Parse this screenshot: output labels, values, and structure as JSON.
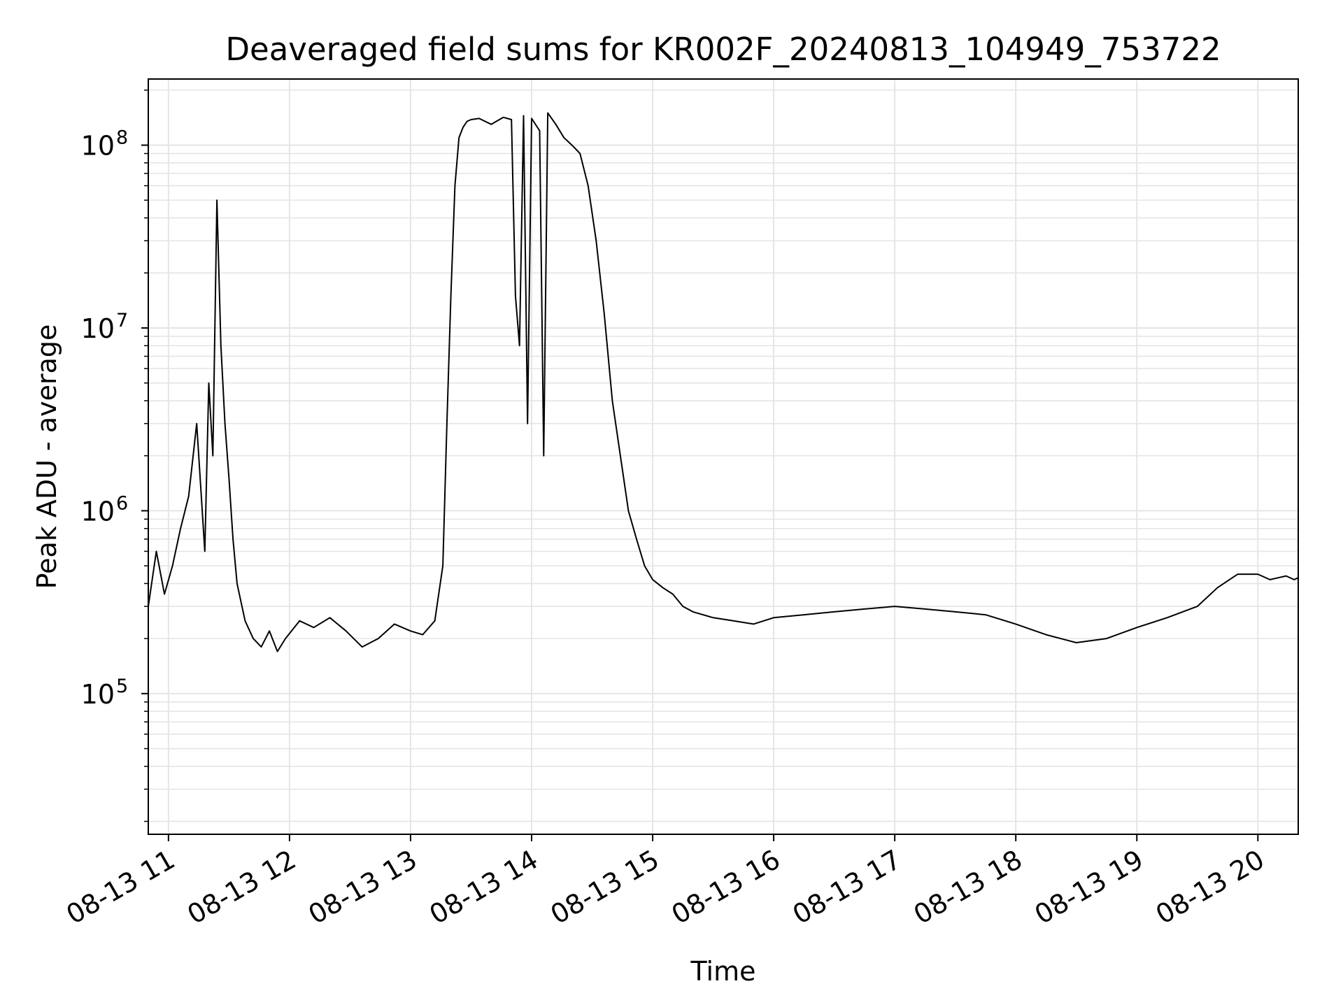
{
  "chart_data": {
    "type": "line",
    "title": "Deaveraged field sums for KR002F_20240813_104949_753722",
    "xlabel": "Time",
    "ylabel": "Peak ADU - average",
    "xlim": [
      "2024-08-13 10:50",
      "2024-08-13 20:20"
    ],
    "ylim": [
      17000,
      230000000
    ],
    "yscale": "log",
    "grid": true,
    "grid_which": "both",
    "line_color": "#000000",
    "grid_color": "#e5e5e5",
    "xticks": [
      {
        "t": "2024-08-13 11:00",
        "label": "08-13 11"
      },
      {
        "t": "2024-08-13 12:00",
        "label": "08-13 12"
      },
      {
        "t": "2024-08-13 13:00",
        "label": "08-13 13"
      },
      {
        "t": "2024-08-13 14:00",
        "label": "08-13 14"
      },
      {
        "t": "2024-08-13 15:00",
        "label": "08-13 15"
      },
      {
        "t": "2024-08-13 16:00",
        "label": "08-13 16"
      },
      {
        "t": "2024-08-13 17:00",
        "label": "08-13 17"
      },
      {
        "t": "2024-08-13 18:00",
        "label": "08-13 18"
      },
      {
        "t": "2024-08-13 19:00",
        "label": "08-13 19"
      },
      {
        "t": "2024-08-13 20:00",
        "label": "08-13 20"
      }
    ],
    "yticks": [
      {
        "value": 100000,
        "base": "10",
        "exp": "5"
      },
      {
        "value": 1000000,
        "base": "10",
        "exp": "6"
      },
      {
        "value": 10000000,
        "base": "10",
        "exp": "7"
      },
      {
        "value": 100000000,
        "base": "10",
        "exp": "8"
      }
    ],
    "series": [
      {
        "x": [
          "2024-08-13 10:50",
          "2024-08-13 10:54",
          "2024-08-13 10:58",
          "2024-08-13 11:02",
          "2024-08-13 11:06",
          "2024-08-13 11:10",
          "2024-08-13 11:14",
          "2024-08-13 11:18",
          "2024-08-13 11:20",
          "2024-08-13 11:22",
          "2024-08-13 11:24",
          "2024-08-13 11:26",
          "2024-08-13 11:28",
          "2024-08-13 11:30",
          "2024-08-13 11:32",
          "2024-08-13 11:34",
          "2024-08-13 11:38",
          "2024-08-13 11:42",
          "2024-08-13 11:46",
          "2024-08-13 11:50",
          "2024-08-13 11:54",
          "2024-08-13 11:58",
          "2024-08-13 12:05",
          "2024-08-13 12:12",
          "2024-08-13 12:20",
          "2024-08-13 12:28",
          "2024-08-13 12:36",
          "2024-08-13 12:44",
          "2024-08-13 12:52",
          "2024-08-13 13:00",
          "2024-08-13 13:06",
          "2024-08-13 13:12",
          "2024-08-13 13:16",
          "2024-08-13 13:18",
          "2024-08-13 13:20",
          "2024-08-13 13:22",
          "2024-08-13 13:24",
          "2024-08-13 13:26",
          "2024-08-13 13:28",
          "2024-08-13 13:30",
          "2024-08-13 13:34",
          "2024-08-13 13:40",
          "2024-08-13 13:46",
          "2024-08-13 13:50",
          "2024-08-13 13:52",
          "2024-08-13 13:54",
          "2024-08-13 13:56",
          "2024-08-13 13:58",
          "2024-08-13 14:00",
          "2024-08-13 14:04",
          "2024-08-13 14:06",
          "2024-08-13 14:08",
          "2024-08-13 14:12",
          "2024-08-13 14:16",
          "2024-08-13 14:20",
          "2024-08-13 14:24",
          "2024-08-13 14:28",
          "2024-08-13 14:32",
          "2024-08-13 14:36",
          "2024-08-13 14:40",
          "2024-08-13 14:44",
          "2024-08-13 14:48",
          "2024-08-13 14:52",
          "2024-08-13 14:56",
          "2024-08-13 15:00",
          "2024-08-13 15:05",
          "2024-08-13 15:10",
          "2024-08-13 15:15",
          "2024-08-13 15:20",
          "2024-08-13 15:30",
          "2024-08-13 15:40",
          "2024-08-13 15:50",
          "2024-08-13 16:00",
          "2024-08-13 16:15",
          "2024-08-13 16:30",
          "2024-08-13 16:45",
          "2024-08-13 17:00",
          "2024-08-13 17:15",
          "2024-08-13 17:30",
          "2024-08-13 17:45",
          "2024-08-13 18:00",
          "2024-08-13 18:15",
          "2024-08-13 18:30",
          "2024-08-13 18:45",
          "2024-08-13 19:00",
          "2024-08-13 19:15",
          "2024-08-13 19:30",
          "2024-08-13 19:40",
          "2024-08-13 19:50",
          "2024-08-13 20:00",
          "2024-08-13 20:06",
          "2024-08-13 20:10",
          "2024-08-13 20:14",
          "2024-08-13 20:18",
          "2024-08-13 20:20"
        ],
        "y": [
          300000,
          600000,
          350000,
          500000,
          800000,
          1200000,
          3000000,
          600000,
          5000000,
          2000000,
          50000000,
          8000000,
          3000000,
          1500000,
          700000,
          400000,
          250000,
          200000,
          180000,
          220000,
          170000,
          200000,
          250000,
          230000,
          260000,
          220000,
          180000,
          200000,
          240000,
          220000,
          210000,
          250000,
          500000,
          3000000,
          15000000,
          60000000,
          110000000,
          125000000,
          135000000,
          138000000,
          140000000,
          130000000,
          142000000,
          138000000,
          15000000,
          8000000,
          145000000,
          3000000,
          140000000,
          120000000,
          2000000,
          150000000,
          130000000,
          110000000,
          100000000,
          90000000,
          60000000,
          30000000,
          12000000,
          4000000,
          2000000,
          1000000,
          700000,
          500000,
          420000,
          380000,
          350000,
          300000,
          280000,
          260000,
          250000,
          240000,
          260000,
          270000,
          280000,
          290000,
          300000,
          290000,
          280000,
          270000,
          240000,
          210000,
          190000,
          200000,
          230000,
          260000,
          300000,
          380000,
          450000,
          450000,
          420000,
          430000,
          440000,
          420000,
          430000
        ]
      }
    ]
  }
}
